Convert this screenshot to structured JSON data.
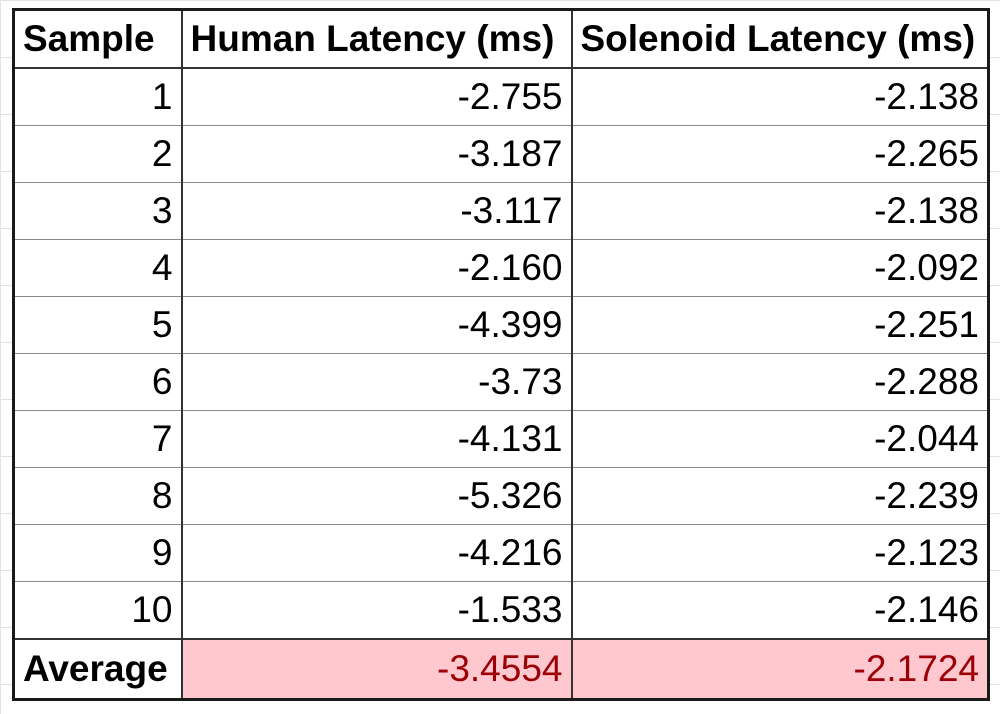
{
  "table": {
    "headers": {
      "sample": "Sample",
      "human": "Human Latency (ms)",
      "solenoid": "Solenoid Latency (ms)"
    },
    "rows": [
      {
        "sample": "1",
        "human": "-2.755",
        "solenoid": "-2.138"
      },
      {
        "sample": "2",
        "human": "-3.187",
        "solenoid": "-2.265"
      },
      {
        "sample": "3",
        "human": "-3.117",
        "solenoid": "-2.138"
      },
      {
        "sample": "4",
        "human": "-2.160",
        "solenoid": "-2.092"
      },
      {
        "sample": "5",
        "human": "-4.399",
        "solenoid": "-2.251"
      },
      {
        "sample": "6",
        "human": "-3.73",
        "solenoid": "-2.288"
      },
      {
        "sample": "7",
        "human": "-4.131",
        "solenoid": "-2.044"
      },
      {
        "sample": "8",
        "human": "-5.326",
        "solenoid": "-2.239"
      },
      {
        "sample": "9",
        "human": "-4.216",
        "solenoid": "-2.123"
      },
      {
        "sample": "10",
        "human": "-1.533",
        "solenoid": "-2.146"
      }
    ],
    "average": {
      "label": "Average",
      "human": "-3.4554",
      "solenoid": "-2.1724"
    }
  },
  "colors": {
    "average_highlight_bg": "#ffc7ce",
    "average_highlight_text": "#9c0006"
  }
}
